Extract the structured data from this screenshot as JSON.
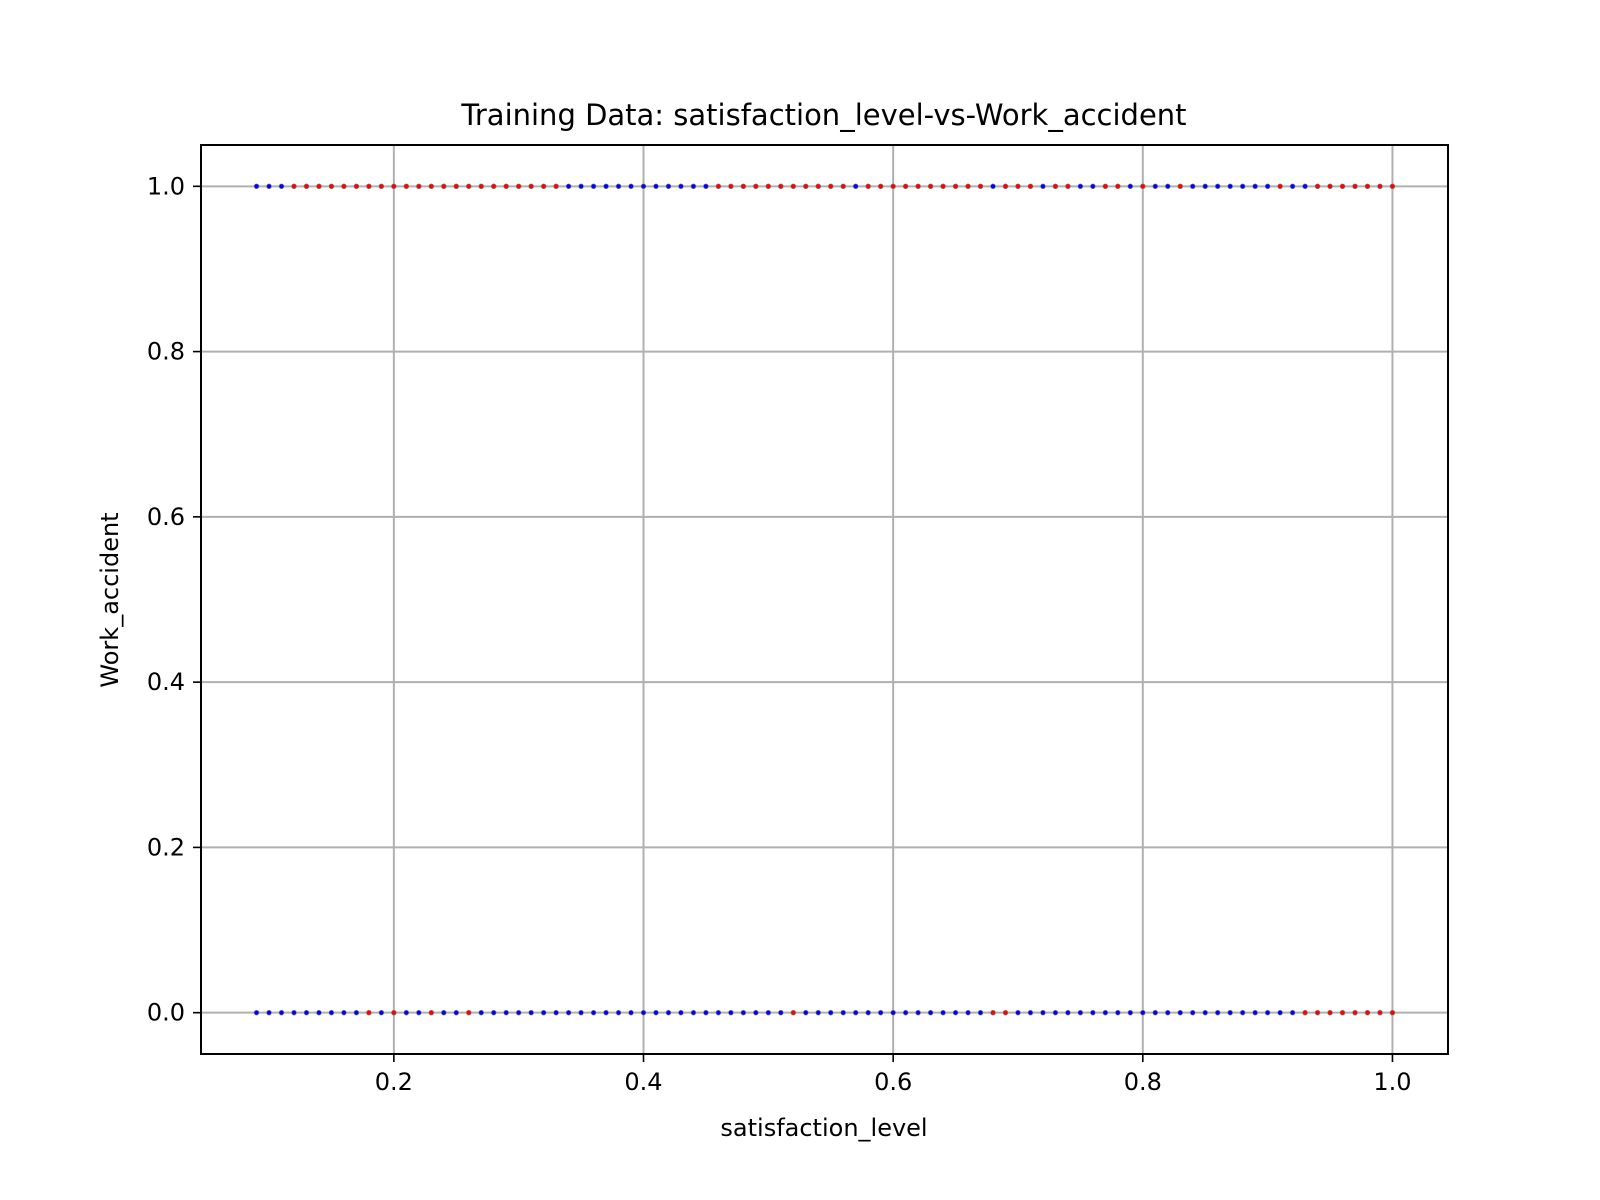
{
  "chart_data": {
    "type": "scatter",
    "title": "Training Data: satisfaction_level-vs-Work_accident",
    "xlabel": "satisfaction_level",
    "ylabel": "Work_accident",
    "xlim": [
      0.0455,
      1.0445
    ],
    "ylim": [
      -0.05,
      1.05
    ],
    "xticks": [
      {
        "value": 0.2,
        "label": "0.2"
      },
      {
        "value": 0.4,
        "label": "0.4"
      },
      {
        "value": 0.6,
        "label": "0.6"
      },
      {
        "value": 0.8,
        "label": "0.8"
      },
      {
        "value": 1.0,
        "label": "1.0"
      }
    ],
    "yticks": [
      {
        "value": 0.0,
        "label": "0.0"
      },
      {
        "value": 0.2,
        "label": "0.2"
      },
      {
        "value": 0.4,
        "label": "0.4"
      },
      {
        "value": 0.6,
        "label": "0.6"
      },
      {
        "value": 0.8,
        "label": "0.8"
      },
      {
        "value": 1.0,
        "label": "1.0"
      }
    ],
    "grid": true,
    "colors": {
      "blue": "#0000ff",
      "red": "#ff0000"
    },
    "series": [
      {
        "color": "#0000ff",
        "points": [
          [
            0.09,
            1
          ],
          [
            0.1,
            1
          ],
          [
            0.11,
            1
          ],
          [
            0.34,
            1
          ],
          [
            0.35,
            1
          ],
          [
            0.36,
            1
          ],
          [
            0.37,
            1
          ],
          [
            0.38,
            1
          ],
          [
            0.39,
            1
          ],
          [
            0.4,
            1
          ],
          [
            0.41,
            1
          ],
          [
            0.42,
            1
          ],
          [
            0.43,
            1
          ],
          [
            0.44,
            1
          ],
          [
            0.45,
            1
          ],
          [
            0.57,
            1
          ],
          [
            0.68,
            1
          ],
          [
            0.72,
            1
          ],
          [
            0.75,
            1
          ],
          [
            0.76,
            1
          ],
          [
            0.79,
            1
          ],
          [
            0.81,
            1
          ],
          [
            0.82,
            1
          ],
          [
            0.84,
            1
          ],
          [
            0.85,
            1
          ],
          [
            0.86,
            1
          ],
          [
            0.87,
            1
          ],
          [
            0.88,
            1
          ],
          [
            0.89,
            1
          ],
          [
            0.9,
            1
          ],
          [
            0.92,
            1
          ],
          [
            0.93,
            1
          ],
          [
            0.09,
            0
          ],
          [
            0.1,
            0
          ],
          [
            0.11,
            0
          ],
          [
            0.12,
            0
          ],
          [
            0.13,
            0
          ],
          [
            0.14,
            0
          ],
          [
            0.15,
            0
          ],
          [
            0.16,
            0
          ],
          [
            0.17,
            0
          ],
          [
            0.19,
            0
          ],
          [
            0.21,
            0
          ],
          [
            0.22,
            0
          ],
          [
            0.24,
            0
          ],
          [
            0.25,
            0
          ],
          [
            0.27,
            0
          ],
          [
            0.28,
            0
          ],
          [
            0.29,
            0
          ],
          [
            0.3,
            0
          ],
          [
            0.31,
            0
          ],
          [
            0.32,
            0
          ],
          [
            0.33,
            0
          ],
          [
            0.34,
            0
          ],
          [
            0.35,
            0
          ],
          [
            0.36,
            0
          ],
          [
            0.37,
            0
          ],
          [
            0.38,
            0
          ],
          [
            0.39,
            0
          ],
          [
            0.4,
            0
          ],
          [
            0.41,
            0
          ],
          [
            0.42,
            0
          ],
          [
            0.43,
            0
          ],
          [
            0.44,
            0
          ],
          [
            0.45,
            0
          ],
          [
            0.46,
            0
          ],
          [
            0.47,
            0
          ],
          [
            0.48,
            0
          ],
          [
            0.49,
            0
          ],
          [
            0.5,
            0
          ],
          [
            0.51,
            0
          ],
          [
            0.53,
            0
          ],
          [
            0.54,
            0
          ],
          [
            0.55,
            0
          ],
          [
            0.56,
            0
          ],
          [
            0.57,
            0
          ],
          [
            0.58,
            0
          ],
          [
            0.59,
            0
          ],
          [
            0.6,
            0
          ],
          [
            0.61,
            0
          ],
          [
            0.62,
            0
          ],
          [
            0.63,
            0
          ],
          [
            0.64,
            0
          ],
          [
            0.65,
            0
          ],
          [
            0.66,
            0
          ],
          [
            0.67,
            0
          ],
          [
            0.7,
            0
          ],
          [
            0.71,
            0
          ],
          [
            0.72,
            0
          ],
          [
            0.73,
            0
          ],
          [
            0.74,
            0
          ],
          [
            0.75,
            0
          ],
          [
            0.76,
            0
          ],
          [
            0.77,
            0
          ],
          [
            0.78,
            0
          ],
          [
            0.79,
            0
          ],
          [
            0.8,
            0
          ],
          [
            0.81,
            0
          ],
          [
            0.82,
            0
          ],
          [
            0.83,
            0
          ],
          [
            0.84,
            0
          ],
          [
            0.85,
            0
          ],
          [
            0.86,
            0
          ],
          [
            0.87,
            0
          ],
          [
            0.88,
            0
          ],
          [
            0.89,
            0
          ],
          [
            0.9,
            0
          ],
          [
            0.91,
            0
          ],
          [
            0.92,
            0
          ]
        ]
      },
      {
        "color": "#ff0000",
        "points": [
          [
            0.12,
            1
          ],
          [
            0.13,
            1
          ],
          [
            0.14,
            1
          ],
          [
            0.15,
            1
          ],
          [
            0.16,
            1
          ],
          [
            0.17,
            1
          ],
          [
            0.18,
            1
          ],
          [
            0.19,
            1
          ],
          [
            0.2,
            1
          ],
          [
            0.21,
            1
          ],
          [
            0.22,
            1
          ],
          [
            0.23,
            1
          ],
          [
            0.24,
            1
          ],
          [
            0.25,
            1
          ],
          [
            0.26,
            1
          ],
          [
            0.27,
            1
          ],
          [
            0.28,
            1
          ],
          [
            0.29,
            1
          ],
          [
            0.3,
            1
          ],
          [
            0.31,
            1
          ],
          [
            0.32,
            1
          ],
          [
            0.33,
            1
          ],
          [
            0.46,
            1
          ],
          [
            0.47,
            1
          ],
          [
            0.48,
            1
          ],
          [
            0.49,
            1
          ],
          [
            0.5,
            1
          ],
          [
            0.51,
            1
          ],
          [
            0.52,
            1
          ],
          [
            0.53,
            1
          ],
          [
            0.54,
            1
          ],
          [
            0.55,
            1
          ],
          [
            0.56,
            1
          ],
          [
            0.58,
            1
          ],
          [
            0.59,
            1
          ],
          [
            0.6,
            1
          ],
          [
            0.61,
            1
          ],
          [
            0.62,
            1
          ],
          [
            0.63,
            1
          ],
          [
            0.64,
            1
          ],
          [
            0.65,
            1
          ],
          [
            0.66,
            1
          ],
          [
            0.67,
            1
          ],
          [
            0.69,
            1
          ],
          [
            0.7,
            1
          ],
          [
            0.71,
            1
          ],
          [
            0.73,
            1
          ],
          [
            0.74,
            1
          ],
          [
            0.77,
            1
          ],
          [
            0.78,
            1
          ],
          [
            0.8,
            1
          ],
          [
            0.83,
            1
          ],
          [
            0.91,
            1
          ],
          [
            0.94,
            1
          ],
          [
            0.95,
            1
          ],
          [
            0.96,
            1
          ],
          [
            0.97,
            1
          ],
          [
            0.98,
            1
          ],
          [
            0.99,
            1
          ],
          [
            1.0,
            1
          ],
          [
            0.18,
            0
          ],
          [
            0.2,
            0
          ],
          [
            0.23,
            0
          ],
          [
            0.26,
            0
          ],
          [
            0.52,
            0
          ],
          [
            0.68,
            0
          ],
          [
            0.69,
            0
          ],
          [
            0.93,
            0
          ],
          [
            0.94,
            0
          ],
          [
            0.95,
            0
          ],
          [
            0.96,
            0
          ],
          [
            0.97,
            0
          ],
          [
            0.98,
            0
          ],
          [
            0.99,
            0
          ],
          [
            1.0,
            0
          ]
        ]
      }
    ]
  }
}
